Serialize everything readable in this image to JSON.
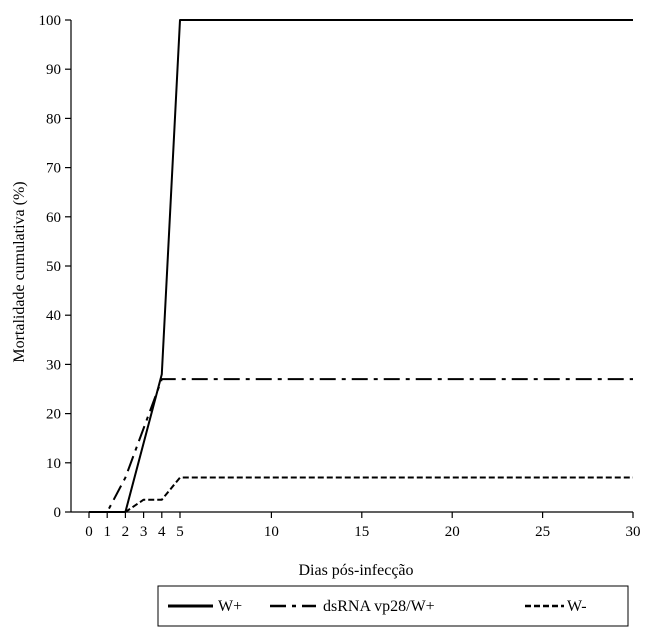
{
  "chart_data": {
    "type": "line",
    "xlabel": "Dias pós-infecção",
    "ylabel": "Mortalidade cumulativa  (%)",
    "xlim": [
      0,
      30
    ],
    "ylim": [
      0,
      100
    ],
    "x_ticks": [
      0,
      1,
      2,
      3,
      4,
      5,
      10,
      15,
      20,
      25,
      30
    ],
    "y_ticks": [
      0,
      10,
      20,
      30,
      40,
      50,
      60,
      70,
      80,
      90,
      100
    ],
    "grid": false,
    "legend_position": "bottom",
    "series": [
      {
        "name": "W+",
        "style": "solid",
        "color": "#000000",
        "x": [
          0,
          1,
          2,
          4,
          5,
          30
        ],
        "y": [
          0,
          0,
          0,
          28,
          100,
          100
        ]
      },
      {
        "name": "dsRNA vp28/W+",
        "style": "dash-dot",
        "color": "#000000",
        "x": [
          0,
          1,
          2,
          3,
          4,
          5,
          30
        ],
        "y": [
          0,
          0,
          7,
          17,
          27,
          27,
          27
        ]
      },
      {
        "name": "W-",
        "style": "dashed",
        "color": "#000000",
        "x": [
          0,
          1,
          2,
          3,
          4,
          5,
          30
        ],
        "y": [
          0,
          0,
          0,
          2.5,
          2.5,
          7,
          7
        ]
      }
    ]
  }
}
